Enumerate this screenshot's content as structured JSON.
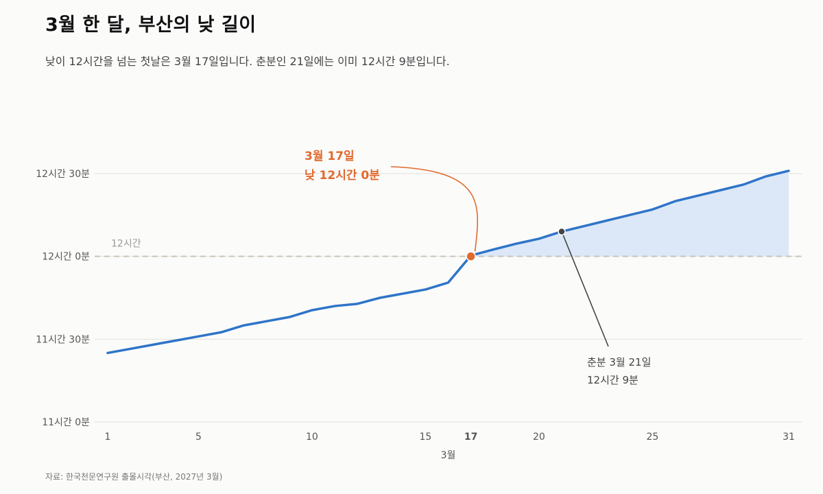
{
  "title": "3월 한 달, 부산의 낮 길이",
  "subtitle": "낮이 12시간을 넘는 첫날은 3월 17일입니다. 춘분인 21일에는 이미 12시간 9분입니다.",
  "source": "자료: 한국천문연구원 출몰시각(부산, 2027년 3월)",
  "colors": {
    "line": "#2f74c8",
    "area": "#dce8f7",
    "highlight": "#e06a2c",
    "equinox": "#444444",
    "reference": "#c9c4b8"
  },
  "chart_data": {
    "type": "line",
    "xlabel": "3월",
    "ylabel": "",
    "xlim": [
      1,
      31
    ],
    "ylim": [
      660,
      750
    ],
    "x_ticks": [
      "1",
      "5",
      "10",
      "15",
      "17",
      "20",
      "25",
      "31"
    ],
    "y_ticks": [
      {
        "value": 660,
        "label": "11시간 0분"
      },
      {
        "value": 690,
        "label": "11시간 30분"
      },
      {
        "value": 720,
        "label": "12시간 0분"
      },
      {
        "value": 750,
        "label": "12시간 30분"
      }
    ],
    "reference_line": {
      "value": 720,
      "label": "12시간"
    },
    "x": [
      1,
      2,
      3,
      4,
      5,
      6,
      7,
      8,
      9,
      10,
      11,
      12,
      13,
      14,
      15,
      16,
      17,
      18,
      19,
      20,
      21,
      22,
      23,
      24,
      25,
      26,
      27,
      28,
      29,
      30,
      31
    ],
    "values": [
      685,
      686.5,
      688,
      689.5,
      691,
      692.5,
      695,
      696.5,
      698,
      700.5,
      702,
      702.8,
      705,
      706.5,
      708,
      710.5,
      720.3,
      722.5,
      724.6,
      726.4,
      729,
      731,
      733,
      735,
      737,
      740,
      742,
      744,
      746,
      749,
      751
    ],
    "annotations": [
      {
        "x": 17,
        "line1": "3월 17일",
        "line2": "낮 12시간 0분"
      },
      {
        "x": 21,
        "line1": "춘분 3월 21일",
        "line2": "12시간 9분"
      }
    ]
  }
}
